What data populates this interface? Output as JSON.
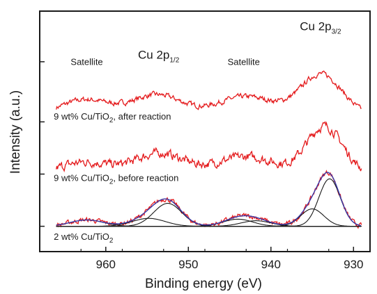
{
  "chart_data": {
    "type": "line",
    "title": "",
    "xlabel": "Binding energy (eV)",
    "ylabel": "Intensity (a.u.)",
    "xlim": [
      968,
      928
    ],
    "x_reversed": true,
    "xticks": [
      960,
      950,
      940,
      930
    ],
    "grid": false,
    "legend": "none",
    "series_color": "#e41a1c",
    "fit_color": "#1a1a1a",
    "envelope_color": "#3a3aa8",
    "series": [
      {
        "label_parts": [
          "9 wt% Cu/TiO",
          "2",
          ", after reaction"
        ],
        "offset": 7.0,
        "noise": 0.13,
        "baseline": 0.0,
        "peaks": [
          {
            "center": 962.5,
            "height": 1.0,
            "width": 3.0
          },
          {
            "center": 953.8,
            "height": 1.3,
            "width": 3.0
          },
          {
            "center": 943.0,
            "height": 1.2,
            "width": 3.5
          },
          {
            "center": 933.9,
            "height": 2.6,
            "width": 2.5
          }
        ]
      },
      {
        "label_parts": [
          "9 wt% Cu/TiO",
          "2",
          ", before reaction"
        ],
        "offset": 3.3,
        "noise": 0.22,
        "baseline": 0.0,
        "peaks": [
          {
            "center": 962.5,
            "height": 0.75,
            "width": 3.0
          },
          {
            "center": 953.5,
            "height": 1.3,
            "width": 3.0
          },
          {
            "center": 943.0,
            "height": 1.1,
            "width": 3.5
          },
          {
            "center": 933.5,
            "height": 3.0,
            "width": 2.2
          }
        ]
      },
      {
        "label_parts": [
          "2 wt% Cu/TiO",
          "2",
          ""
        ],
        "offset": 0.0,
        "noise": 0.12,
        "baseline": 0.0,
        "peaks": [
          {
            "center": 962.3,
            "height": 0.4,
            "width": 2.0
          },
          {
            "center": 954.8,
            "height": 0.5,
            "width": 2.0
          },
          {
            "center": 952.5,
            "height": 1.45,
            "width": 1.7
          },
          {
            "center": 944.0,
            "height": 0.45,
            "width": 1.8
          },
          {
            "center": 941.8,
            "height": 0.35,
            "width": 1.8
          },
          {
            "center": 935.0,
            "height": 1.1,
            "width": 1.4
          },
          {
            "center": 932.9,
            "height": 3.0,
            "width": 1.3
          }
        ]
      }
    ],
    "annotations": [
      {
        "text": "Satellite",
        "x": 962.3,
        "y": 10.2
      },
      {
        "text_parts": [
          "Cu 2p",
          "1/2"
        ],
        "x": 953.6,
        "y": 10.6
      },
      {
        "text": "Satellite",
        "x": 943.3,
        "y": 10.2
      },
      {
        "text_parts": [
          "Cu 2p",
          "3/2"
        ],
        "x": 934.0,
        "y": 12.4
      }
    ]
  }
}
